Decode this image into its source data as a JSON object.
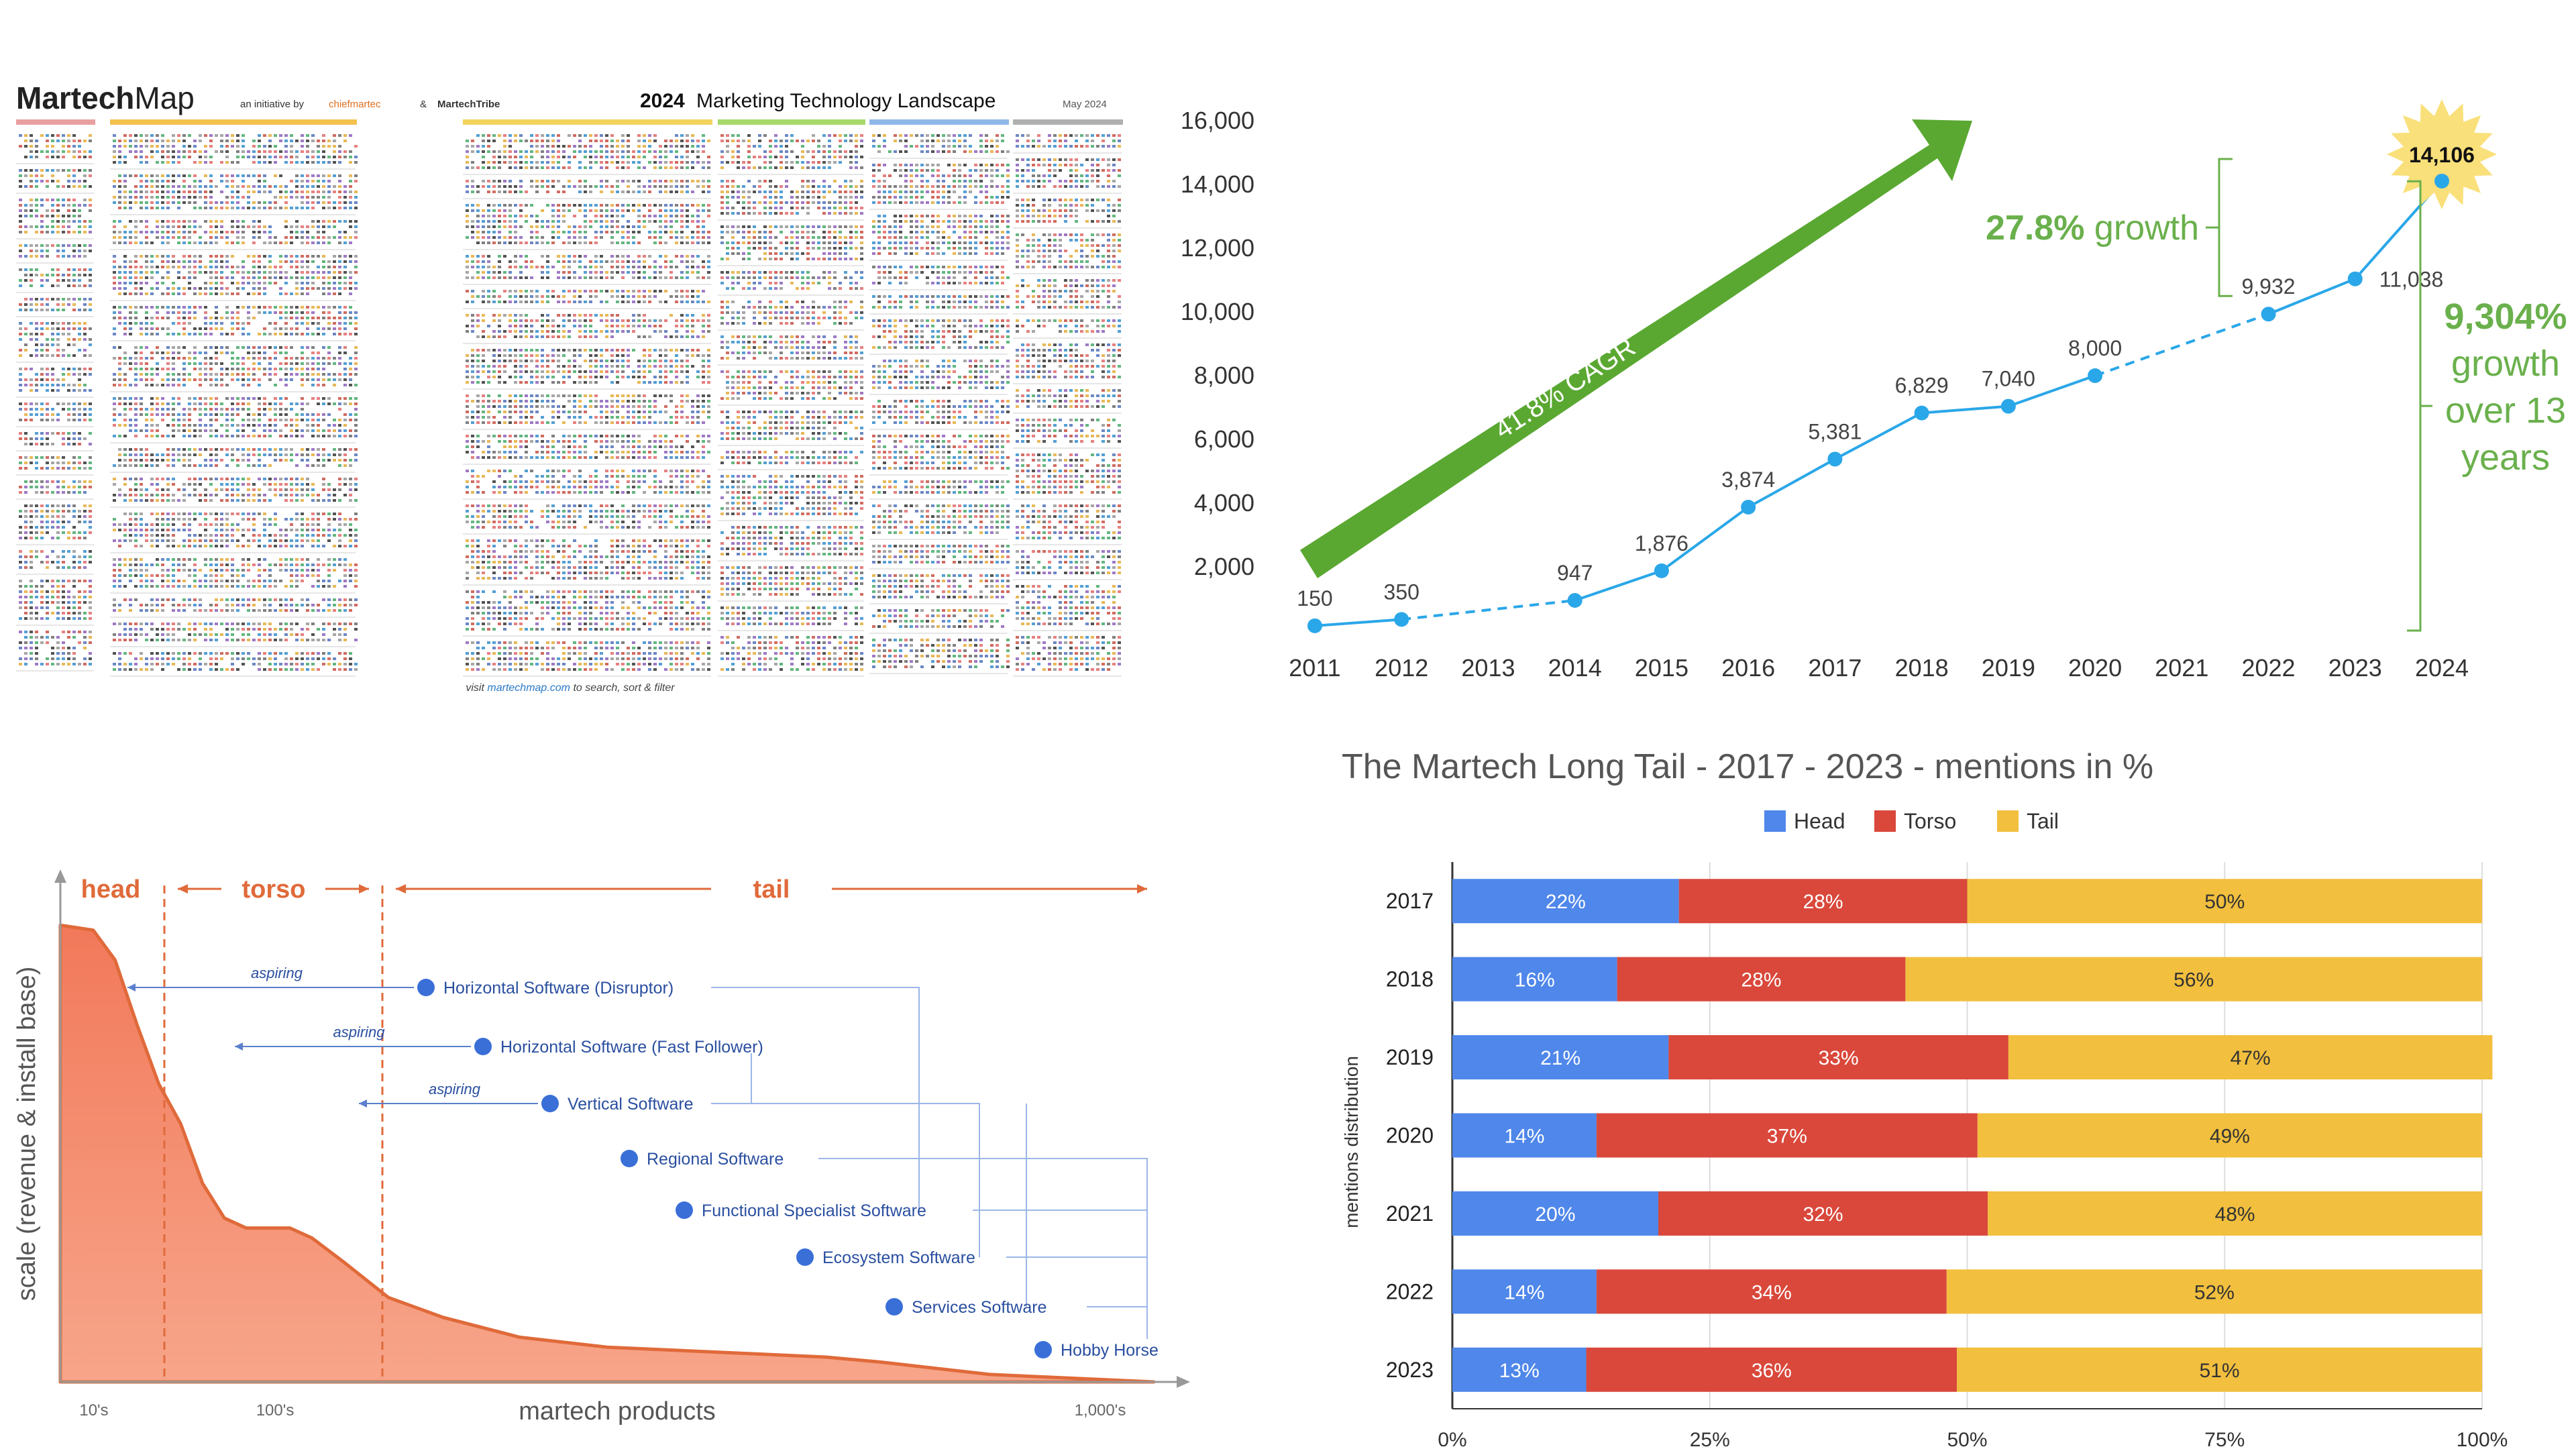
{
  "martech_map": {
    "brand_bold": "Martech",
    "brand_light": "Map",
    "initiative": "an initiative by",
    "partner1": "chiefmartec",
    "amp": "&",
    "partner2": "MartechTribe",
    "year": "2024",
    "title": "Marketing Technology Landscape",
    "date": "May 2024",
    "footer_pre": "visit",
    "footer_link": "martechmap.com",
    "footer_post": "to search, sort & filter",
    "category_colors": [
      "#e8a0a0",
      "#f2c14e",
      "#f2d35e",
      "#a6d96a",
      "#8fb8e8",
      "#b0b0b0"
    ]
  },
  "chart_data": [
    {
      "type": "line",
      "title": "",
      "x": [
        2011,
        2012,
        2013,
        2014,
        2015,
        2016,
        2017,
        2018,
        2019,
        2020,
        2021,
        2022,
        2023,
        2024
      ],
      "points": [
        {
          "x": 2011,
          "y": 150,
          "label": "150"
        },
        {
          "x": 2012,
          "y": 350,
          "label": "350"
        },
        {
          "x": 2014,
          "y": 947,
          "label": "947"
        },
        {
          "x": 2015,
          "y": 1876,
          "label": "1,876"
        },
        {
          "x": 2016,
          "y": 3874,
          "label": "3,874"
        },
        {
          "x": 2017,
          "y": 5381,
          "label": "5,381"
        },
        {
          "x": 2018,
          "y": 6829,
          "label": "6,829"
        },
        {
          "x": 2019,
          "y": 7040,
          "label": "7,040"
        },
        {
          "x": 2020,
          "y": 8000,
          "label": "8,000"
        },
        {
          "x": 2022,
          "y": 9932,
          "label": "9,932"
        },
        {
          "x": 2023,
          "y": 11038,
          "label": "11,038"
        },
        {
          "x": 2024,
          "y": 14106,
          "label": "14,106"
        }
      ],
      "dashed_segments": [
        [
          2012,
          2014
        ],
        [
          2020,
          2022
        ]
      ],
      "yticks": [
        "2,000",
        "4,000",
        "6,000",
        "8,000",
        "10,000",
        "12,000",
        "14,000",
        "16,000"
      ],
      "ylim": [
        0,
        16000
      ],
      "xlim": [
        2011,
        2024
      ],
      "line_color": "#2aa7e8",
      "annotations": {
        "cagr": "41.8% CAGR",
        "growth_pct": "27.8%",
        "growth_word": "growth",
        "total_lines": [
          "9,304%",
          "growth",
          "over 13",
          "years"
        ],
        "arrow_color": "#5aa832",
        "text_color": "#6ab04c"
      }
    },
    {
      "type": "area",
      "title": "",
      "xlabel": "martech products",
      "ylabel": "scale (revenue & install base)",
      "xticks": [
        "10's",
        "100's",
        "1,000's"
      ],
      "regions": [
        "head",
        "torso",
        "tail"
      ],
      "region_color": "#e06a3a",
      "categories": [
        {
          "label": "Horizontal Software (Disruptor)",
          "aspiring": "aspiring"
        },
        {
          "label": "Horizontal Software (Fast Follower)",
          "aspiring": "aspiring"
        },
        {
          "label": "Vertical Software",
          "aspiring": "aspiring"
        },
        {
          "label": "Regional Software",
          "aspiring": ""
        },
        {
          "label": "Functional Specialist Software",
          "aspiring": ""
        },
        {
          "label": "Ecosystem Software",
          "aspiring": ""
        },
        {
          "label": "Services Software",
          "aspiring": ""
        },
        {
          "label": "Hobby Horse",
          "aspiring": ""
        }
      ],
      "curve": [
        [
          0.0,
          0.92
        ],
        [
          0.03,
          0.91
        ],
        [
          0.05,
          0.85
        ],
        [
          0.07,
          0.72
        ],
        [
          0.09,
          0.6
        ],
        [
          0.11,
          0.52
        ],
        [
          0.13,
          0.4
        ],
        [
          0.15,
          0.33
        ],
        [
          0.17,
          0.31
        ],
        [
          0.19,
          0.31
        ],
        [
          0.21,
          0.31
        ],
        [
          0.23,
          0.29
        ],
        [
          0.26,
          0.24
        ],
        [
          0.3,
          0.17
        ],
        [
          0.35,
          0.13
        ],
        [
          0.42,
          0.09
        ],
        [
          0.5,
          0.07
        ],
        [
          0.6,
          0.06
        ],
        [
          0.7,
          0.05
        ],
        [
          0.75,
          0.04
        ],
        [
          0.85,
          0.015
        ],
        [
          1.0,
          0.0
        ]
      ],
      "point_color": "#3a6fd8"
    },
    {
      "type": "bar",
      "orientation": "horizontal-stacked",
      "title": "The Martech Long Tail - 2017 - 2023 - mentions in %",
      "ylabel": "mentions distribution",
      "categories": [
        "2017",
        "2018",
        "2019",
        "2020",
        "2021",
        "2022",
        "2023"
      ],
      "series": [
        {
          "name": "Head",
          "color": "#4f87ea",
          "values": [
            22,
            16,
            21,
            14,
            20,
            14,
            13
          ]
        },
        {
          "name": "Torso",
          "color": "#d9483b",
          "values": [
            28,
            28,
            33,
            37,
            32,
            34,
            36
          ]
        },
        {
          "name": "Tail",
          "color": "#f2bf3e",
          "values": [
            50,
            56,
            47,
            49,
            48,
            52,
            51
          ]
        }
      ],
      "xticks": [
        "0%",
        "25%",
        "50%",
        "75%",
        "100%"
      ],
      "xlim": [
        0,
        100
      ],
      "legend": "top-center"
    }
  ]
}
